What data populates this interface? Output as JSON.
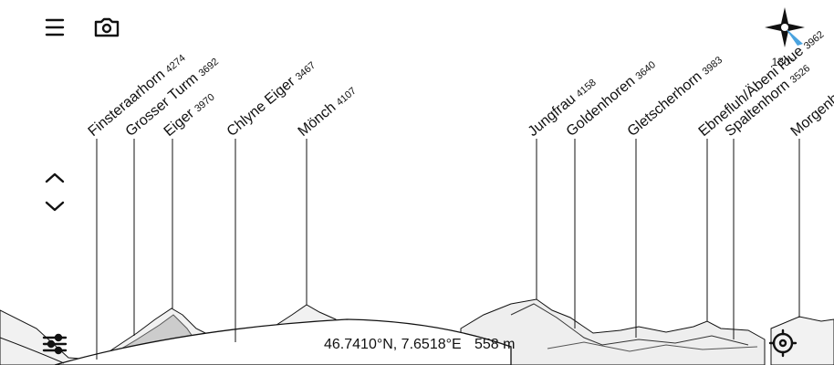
{
  "peaks": [
    {
      "name": "Finsteraarhorn",
      "elevation": 4274
    },
    {
      "name": "Grosser Turm",
      "elevation": 3692
    },
    {
      "name": "Eiger",
      "elevation": 3970
    },
    {
      "name": "Chlyne Eiger",
      "elevation": 3467
    },
    {
      "name": "Mönch",
      "elevation": 4107
    },
    {
      "name": "Jungfrau",
      "elevation": 4158
    },
    {
      "name": "Goldenhoren",
      "elevation": 3640
    },
    {
      "name": "Gletscherhorn",
      "elevation": 3983
    },
    {
      "name": "Ebnefluh/Äbeni Flue",
      "elevation": 3962
    },
    {
      "name": "Spaltenhorn",
      "elevation": 3526
    },
    {
      "name": "Morgenhorn"
    }
  ],
  "compass": {
    "heading": "130°"
  },
  "location": {
    "coordinates": "46.7410°N, 7.6518°E",
    "altitude": "558 m"
  }
}
